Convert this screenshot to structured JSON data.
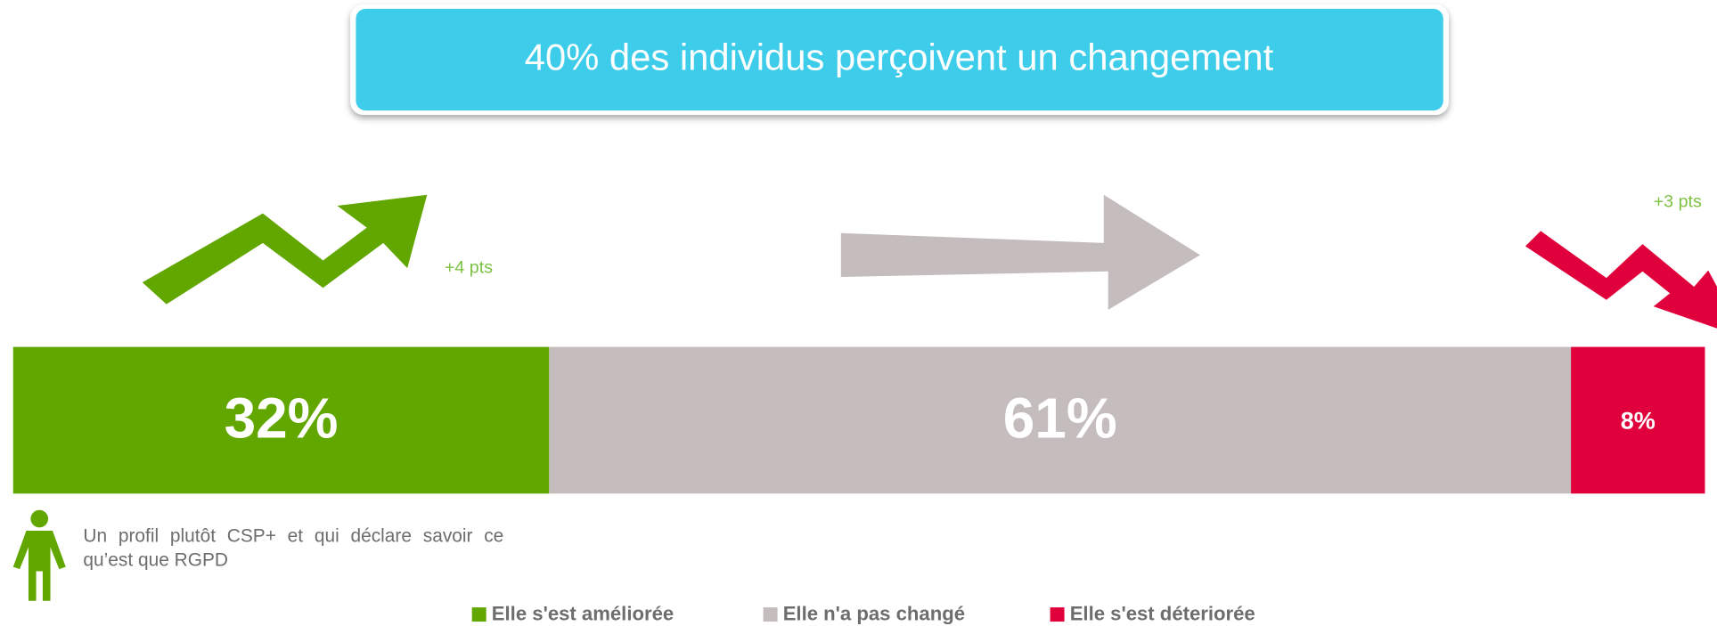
{
  "chart_data": {
    "type": "stacked-bar",
    "orientation": "horizontal",
    "title": "40% des individus perçoivent un changement",
    "series": [
      {
        "name": "Elle s'est améliorée",
        "color": "#62a600",
        "values": [
          32
        ],
        "value_labels": [
          "32%"
        ]
      },
      {
        "name": "Elle n'a pas changé",
        "color": "#c5bdbd",
        "values": [
          61
        ],
        "value_labels": [
          "61%"
        ]
      },
      {
        "name": "Elle s'est déteriorée",
        "color": "#e0003c",
        "values": [
          8
        ],
        "value_labels": [
          "8%"
        ]
      }
    ],
    "annotations": [
      "+4 pts",
      "+3 pts"
    ],
    "note": "Un profil plutôt CSP+ et qui déclare savoir ce qu’est que RGPD",
    "legend": "bottom"
  }
}
